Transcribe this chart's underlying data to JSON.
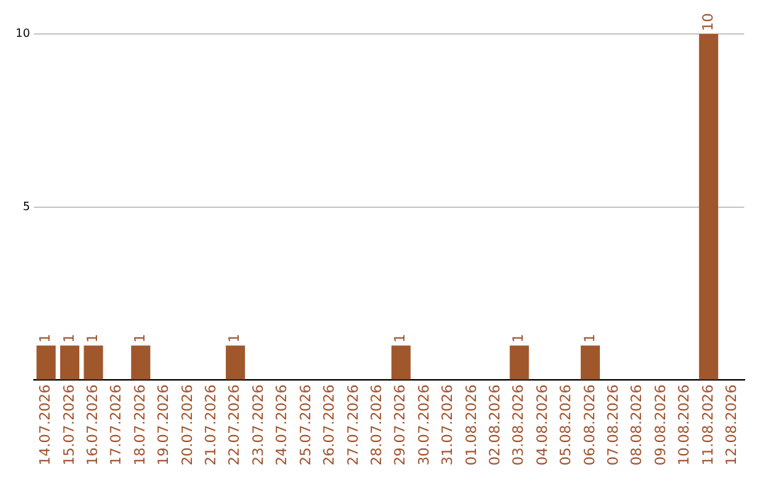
{
  "chart_data": {
    "type": "bar",
    "categories": [
      "14.07.2026",
      "15.07.2026",
      "16.07.2026",
      "17.07.2026",
      "18.07.2026",
      "19.07.2026",
      "20.07.2026",
      "21.07.2026",
      "22.07.2026",
      "23.07.2026",
      "24.07.2026",
      "25.07.2026",
      "26.07.2026",
      "27.07.2026",
      "28.07.2026",
      "29.07.2026",
      "30.07.2026",
      "31.07.2026",
      "01.08.2026",
      "02.08.2026",
      "03.08.2026",
      "04.08.2026",
      "05.08.2026",
      "06.08.2026",
      "07.08.2026",
      "08.08.2026",
      "09.08.2026",
      "10.08.2026",
      "11.08.2026",
      "12.08.2026"
    ],
    "values": [
      1,
      1,
      1,
      0,
      1,
      0,
      0,
      0,
      1,
      0,
      0,
      0,
      0,
      0,
      0,
      1,
      0,
      0,
      0,
      0,
      1,
      0,
      0,
      1,
      0,
      0,
      0,
      0,
      10,
      0
    ],
    "value_labels": [
      "1",
      "1",
      "1",
      null,
      "1",
      null,
      null,
      null,
      "1",
      null,
      null,
      null,
      null,
      null,
      null,
      "1",
      null,
      null,
      null,
      null,
      "1",
      null,
      null,
      "1",
      null,
      null,
      null,
      null,
      "10",
      null
    ],
    "color": "#a0572b",
    "ylim": [
      0,
      10
    ],
    "yticks": [
      {
        "value": 0,
        "label": null
      },
      5,
      10
    ],
    "grid": "y"
  }
}
